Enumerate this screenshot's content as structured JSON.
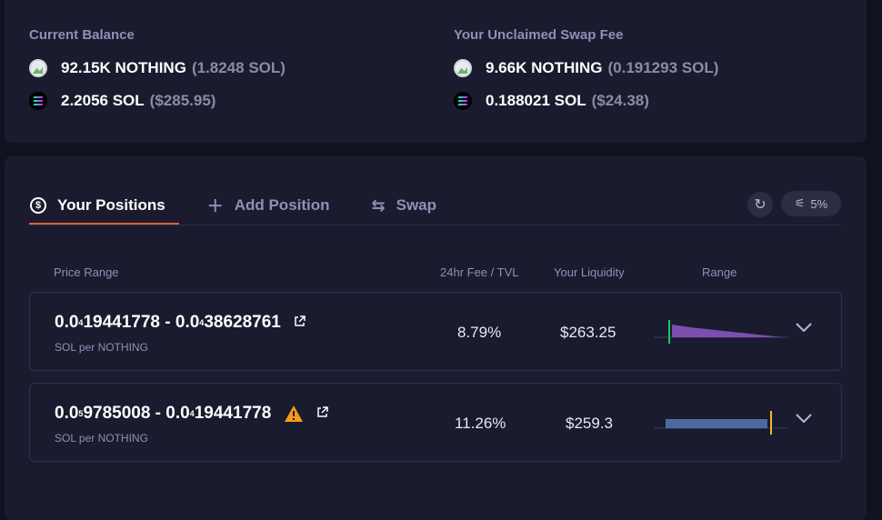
{
  "balance": {
    "current": {
      "heading": "Current Balance",
      "rows": [
        {
          "icon": "nothing-token-icon",
          "amount": "92.15K NOTHING",
          "sub": "(1.8248 SOL)"
        },
        {
          "icon": "sol-token-icon",
          "amount": "2.2056 SOL",
          "sub": "($285.95)"
        }
      ]
    },
    "unclaimed": {
      "heading": "Your Unclaimed Swap Fee",
      "rows": [
        {
          "icon": "nothing-token-icon",
          "amount": "9.66K NOTHING",
          "sub": "(0.191293 SOL)"
        },
        {
          "icon": "sol-token-icon",
          "amount": "0.188021 SOL",
          "sub": "($24.38)"
        }
      ]
    }
  },
  "tabs": {
    "positions": "Your Positions",
    "add": "Add Position",
    "swap": "Swap"
  },
  "slippage": "5%",
  "columns": {
    "price_range": "Price Range",
    "fee_tvl": "24hr Fee / TVL",
    "liquidity": "Your Liquidity",
    "range": "Range"
  },
  "positions": [
    {
      "low_prefix": "0.0",
      "low_sub": "4",
      "low_rest": "19441778",
      "sep": " - ",
      "high_prefix": "0.0",
      "high_sub": "4",
      "high_rest": "38628761",
      "unit": "SOL per NOTHING",
      "fee": "8.79%",
      "liquidity": "$263.25",
      "warning": false
    },
    {
      "low_prefix": "0.0",
      "low_sub": "5",
      "low_rest": "9785008",
      "sep": " - ",
      "high_prefix": "0.0",
      "high_sub": "4",
      "high_rest": "19441778",
      "unit": "SOL per NOTHING",
      "fee": "11.26%",
      "liquidity": "$259.3",
      "warning": true
    }
  ],
  "colors": {
    "accent_underline": "#e25a3c",
    "range_purple": "#7b4fb0",
    "range_blue": "#4d6a9e",
    "active_marker_green": "#17c964",
    "active_marker_yellow": "#f5b728",
    "warning": "#f59a1b"
  }
}
